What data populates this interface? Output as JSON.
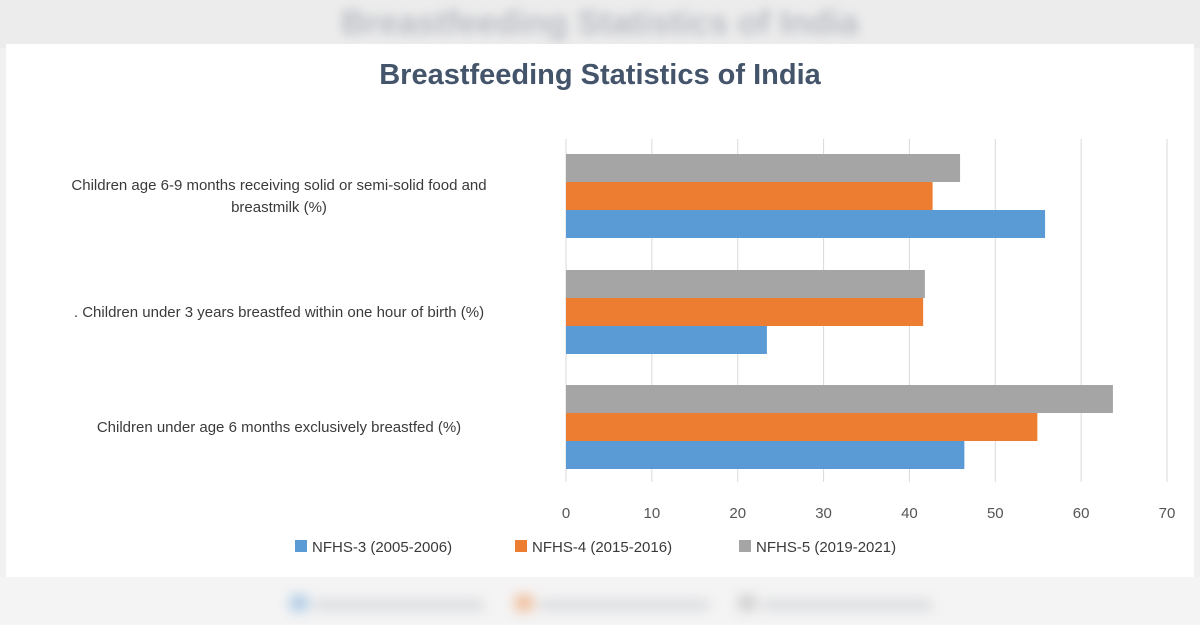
{
  "chart_data": {
    "type": "bar",
    "orientation": "horizontal",
    "title": "Breastfeeding Statistics of India",
    "categories": [
      [
        "Children age 6-9 months receiving solid or semi-solid food and",
        "breastmilk (%)"
      ],
      [
        ". Children under 3 years breastfed within one hour of birth (%)"
      ],
      [
        "Children under age 6 months exclusively breastfed (%)"
      ]
    ],
    "series": [
      {
        "name": "NFHS-3 (2005-2006)",
        "color": "#5b9bd5",
        "values": [
          55.8,
          23.4,
          46.4
        ]
      },
      {
        "name": "NFHS-4 (2015-2016)",
        "color": "#ed7d31",
        "values": [
          42.7,
          41.6,
          54.9
        ]
      },
      {
        "name": "NFHS-5 (2019-2021)",
        "color": "#a5a5a5",
        "values": [
          45.9,
          41.8,
          63.7
        ]
      }
    ],
    "xlim": [
      0,
      70
    ],
    "xticks": [
      0,
      10,
      20,
      30,
      40,
      50,
      60,
      70
    ],
    "grid": true,
    "legend": "bottom"
  }
}
